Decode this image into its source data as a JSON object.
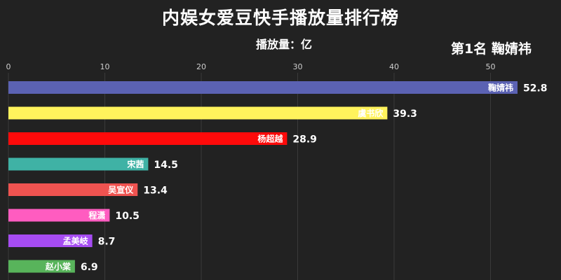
{
  "chart_data": {
    "type": "bar",
    "orientation": "horizontal",
    "title": "内娱女爱豆快手播放量排行榜",
    "subtitle": "播放量：亿",
    "leader": "第1名 鞠婧祎",
    "xlim": [
      0,
      57
    ],
    "xticks": [
      0,
      10,
      20,
      30,
      40,
      50
    ],
    "grid": true,
    "series": [
      {
        "category": "鞠婧祎",
        "value": 52.8,
        "color": "#5b62b3"
      },
      {
        "category": "虞书欣",
        "value": 39.3,
        "color": "#fff35c"
      },
      {
        "category": "杨超越",
        "value": 28.9,
        "color": "#ff0a0a"
      },
      {
        "category": "宋茜",
        "value": 14.5,
        "color": "#3fb2a5"
      },
      {
        "category": "吴宣仪",
        "value": 13.4,
        "color": "#ef5350"
      },
      {
        "category": "程潇",
        "value": 10.5,
        "color": "#ff5cc0"
      },
      {
        "category": "孟美岐",
        "value": 8.7,
        "color": "#a64cf2"
      },
      {
        "category": "赵小棠",
        "value": 6.9,
        "color": "#58b45b"
      }
    ]
  }
}
